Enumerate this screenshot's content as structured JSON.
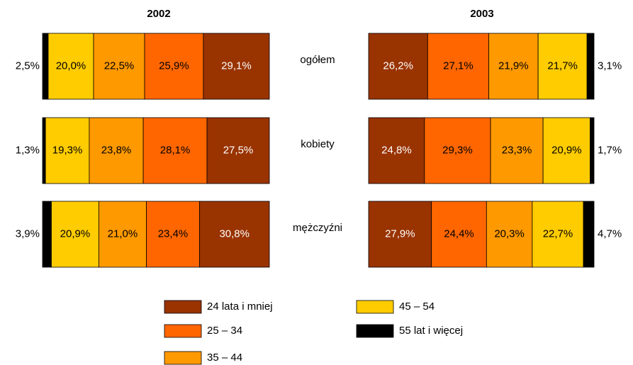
{
  "chart_data": {
    "type": "bar",
    "orientation": "horizontal",
    "stacked": true,
    "xlim": [
      0,
      100
    ],
    "categories": [
      "ogółem",
      "kobiety",
      "mężczyźni"
    ],
    "series": [
      {
        "name": "24 lata i mniej",
        "color": "#993300"
      },
      {
        "name": "25 – 34",
        "color": "#FF6600"
      },
      {
        "name": "35 – 44",
        "color": "#FF9900"
      },
      {
        "name": "45 – 54",
        "color": "#FFCC00"
      },
      {
        "name": "55 lat i więcej",
        "color": "#000000"
      }
    ],
    "panels": [
      {
        "title": "2002",
        "reverse": true,
        "values": [
          [
            29.1,
            27.5,
            30.8
          ],
          [
            25.9,
            28.1,
            23.4
          ],
          [
            22.5,
            23.8,
            21.0
          ],
          [
            20.0,
            19.3,
            20.9
          ],
          [
            2.5,
            1.3,
            3.9
          ]
        ],
        "value_labels": [
          [
            "29,1%",
            "27,5%",
            "30,8%"
          ],
          [
            "25,9%",
            "28,1%",
            "23,4%"
          ],
          [
            "22,5%",
            "23,8%",
            "21,0%"
          ],
          [
            "20,0%",
            "19,3%",
            "20,9%"
          ],
          [
            "2,5%",
            "1,3%",
            "3,9%"
          ]
        ]
      },
      {
        "title": "2003",
        "reverse": false,
        "values": [
          [
            26.2,
            24.8,
            27.9
          ],
          [
            27.1,
            29.3,
            24.4
          ],
          [
            21.9,
            23.3,
            20.3
          ],
          [
            21.7,
            20.9,
            22.7
          ],
          [
            3.1,
            1.7,
            4.7
          ]
        ],
        "value_labels": [
          [
            "26,2%",
            "24,8%",
            "27,9%"
          ],
          [
            "27,1%",
            "29,3%",
            "24,4%"
          ],
          [
            "21,9%",
            "23,3%",
            "20,3%"
          ],
          [
            "21,7%",
            "20,9%",
            "22,7%"
          ],
          [
            "3,1%",
            "1,7%",
            "4,7%"
          ]
        ]
      }
    ]
  }
}
